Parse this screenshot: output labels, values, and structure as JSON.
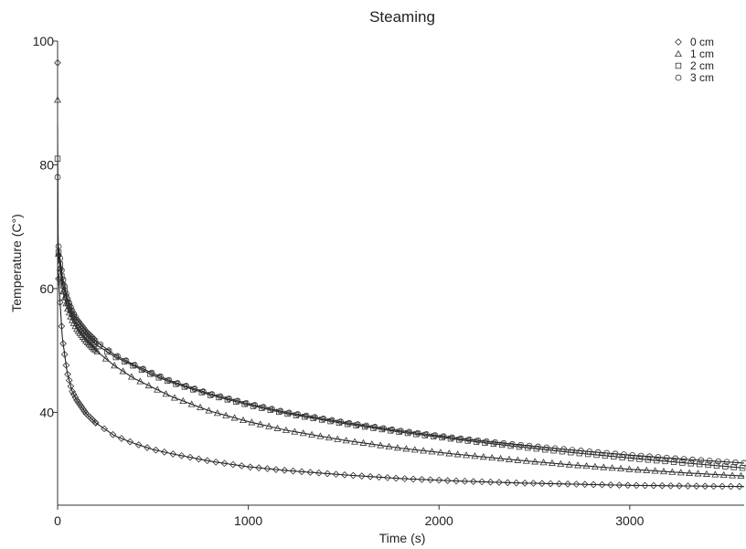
{
  "chart_data": {
    "type": "scatter",
    "title": "Steaming",
    "xlabel": "Time (s)",
    "ylabel": "Temperature (C°)",
    "xlim": [
      0,
      3600
    ],
    "ylim": [
      25,
      100
    ],
    "x_ticks": [
      0,
      1000,
      2000,
      3000
    ],
    "y_ticks": [
      40,
      60,
      80,
      100
    ],
    "grid": false,
    "legend_position": "top-right",
    "fit_lines": true,
    "series": [
      {
        "name": "0 cm",
        "marker": "diamond",
        "first_point": [
          0,
          96.5
        ],
        "x": [
          0,
          25,
          50,
          75,
          100,
          150,
          200,
          300,
          400,
          500,
          600,
          800,
          1000,
          1200,
          1500,
          1800,
          2100,
          2400,
          2700,
          3000,
          3300,
          3600
        ],
        "y": [
          64,
          52,
          46.5,
          43.5,
          42,
          39.8,
          38.3,
          36.2,
          35,
          34,
          33.3,
          32.1,
          31.2,
          30.6,
          29.9,
          29.3,
          28.9,
          28.6,
          28.4,
          28.2,
          28.1,
          28
        ]
      },
      {
        "name": "1 cm",
        "marker": "triangle",
        "first_point": [
          0,
          90.5
        ],
        "x": [
          0,
          25,
          50,
          75,
          100,
          150,
          200,
          300,
          400,
          500,
          600,
          800,
          1000,
          1200,
          1500,
          1800,
          2100,
          2400,
          2700,
          3000,
          3300,
          3600
        ],
        "y": [
          67,
          60,
          57,
          55,
          53.5,
          51.5,
          50,
          47.5,
          45.5,
          44,
          42.5,
          40.2,
          38.5,
          37.1,
          35.5,
          34.2,
          33.2,
          32.3,
          31.5,
          30.8,
          30.2,
          29.7
        ]
      },
      {
        "name": "2 cm",
        "marker": "square",
        "first_point": [
          0,
          81
        ],
        "x": [
          0,
          25,
          50,
          75,
          100,
          150,
          200,
          300,
          400,
          500,
          600,
          800,
          1000,
          1200,
          1500,
          1800,
          2100,
          2400,
          2700,
          3000,
          3300,
          3600
        ],
        "y": [
          67,
          61,
          58,
          56,
          54.5,
          52.5,
          51,
          49,
          47.5,
          46,
          44.8,
          42.8,
          41.2,
          39.8,
          38.2,
          36.8,
          35.6,
          34.5,
          33.5,
          32.6,
          31.8,
          31
        ]
      },
      {
        "name": "3 cm",
        "marker": "circle",
        "first_point": [
          0,
          78
        ],
        "x": [
          0,
          25,
          50,
          75,
          100,
          150,
          200,
          300,
          400,
          500,
          600,
          800,
          1000,
          1200,
          1500,
          1800,
          2100,
          2400,
          2700,
          3000,
          3300,
          3600
        ],
        "y": [
          68,
          62,
          58.5,
          56.5,
          55,
          53,
          51.5,
          49.3,
          47.7,
          46.3,
          45,
          43,
          41.4,
          40,
          38.4,
          37,
          35.8,
          34.8,
          33.9,
          33.1,
          32.4,
          31.8
        ]
      }
    ]
  }
}
